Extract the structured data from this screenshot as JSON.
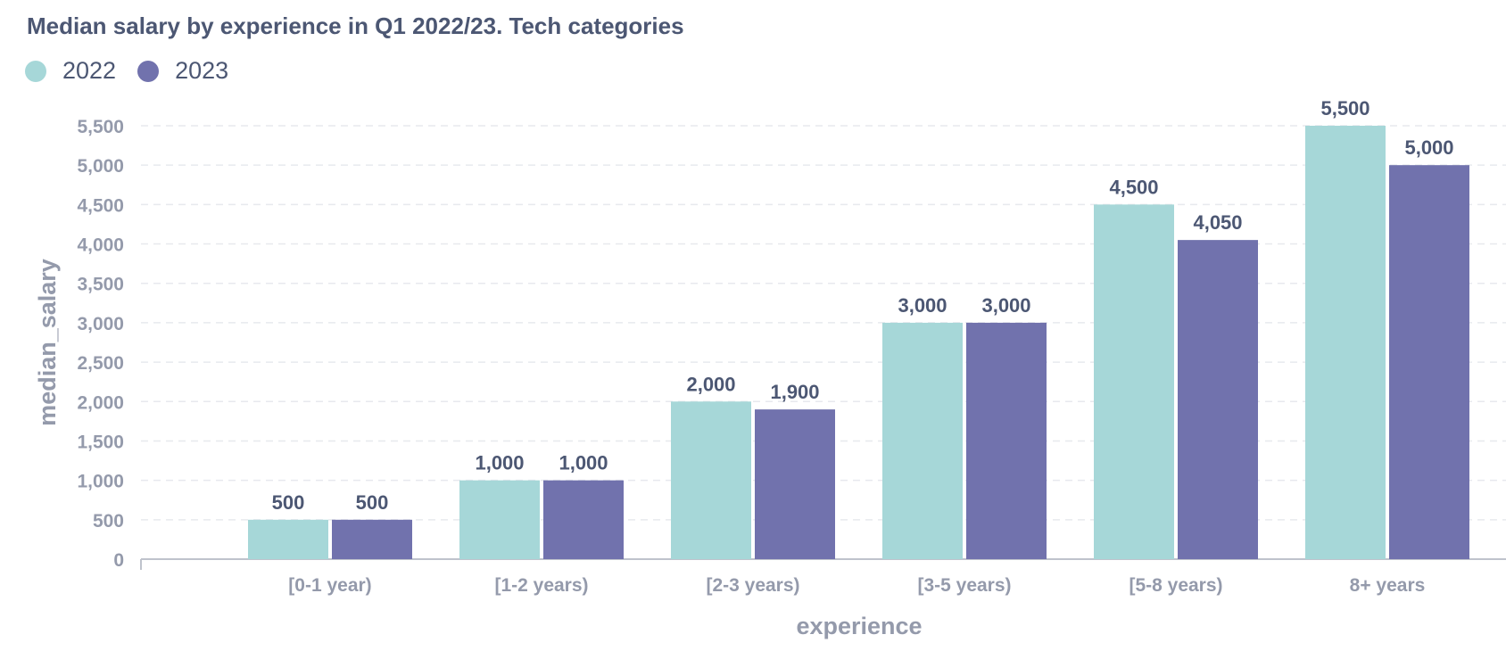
{
  "chart_data": {
    "type": "bar",
    "title": "Median salary by experience in Q1 2022/23. Tech categories",
    "xlabel": "experience",
    "ylabel": "median_salary",
    "categories": [
      "[0-1 year)",
      "[1-2 years)",
      "[2-3 years)",
      "[3-5 years)",
      "[5-8 years)",
      "8+ years"
    ],
    "series": [
      {
        "name": "2022",
        "color": "#a6d7d8",
        "values": [
          500,
          1000,
          2000,
          3000,
          4500,
          5500
        ]
      },
      {
        "name": "2023",
        "color": "#7172ad",
        "values": [
          500,
          1000,
          1900,
          3000,
          4050,
          5000
        ]
      }
    ],
    "ylim": [
      0,
      5500
    ],
    "yticks": [
      0,
      500,
      1000,
      1500,
      2000,
      2500,
      3000,
      3500,
      4000,
      4500,
      5000,
      5500
    ],
    "ytick_labels": [
      "0",
      "500",
      "1,000",
      "1,500",
      "2,000",
      "2,500",
      "3,000",
      "3,500",
      "4,000",
      "4,500",
      "5,000",
      "5,500"
    ],
    "grid": "horizontal dashed",
    "legend_position": "top-left"
  }
}
